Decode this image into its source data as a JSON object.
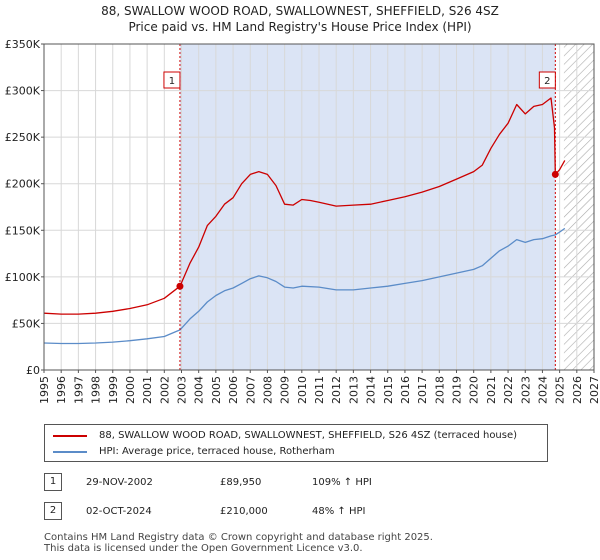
{
  "title_line1": "88, SWALLOW WOOD ROAD, SWALLOWNEST, SHEFFIELD, S26 4SZ",
  "title_line2": "Price paid vs. HM Land Registry's House Price Index (HPI)",
  "chart_data": {
    "type": "line",
    "title": "Price paid vs. HM Land Registry's House Price Index (HPI)",
    "xlabel": "",
    "ylabel": "",
    "xlim": [
      1995,
      2027
    ],
    "ylim": [
      0,
      350000
    ],
    "x_ticks": [
      1995,
      1996,
      1997,
      1998,
      1999,
      2000,
      2001,
      2002,
      2003,
      2004,
      2005,
      2006,
      2007,
      2008,
      2009,
      2010,
      2011,
      2012,
      2013,
      2014,
      2015,
      2016,
      2017,
      2018,
      2019,
      2020,
      2021,
      2022,
      2023,
      2024,
      2025,
      2026,
      2027
    ],
    "y_ticks": [
      0,
      50000,
      100000,
      150000,
      200000,
      250000,
      300000,
      350000
    ],
    "y_tick_labels": [
      "£0",
      "£50K",
      "£100K",
      "£150K",
      "£200K",
      "£250K",
      "£300K",
      "£350K"
    ],
    "shaded_period": {
      "from": 2002.91,
      "to": 2024.75,
      "color": "#dbe4f5"
    },
    "future_hatch_from": 2025.25,
    "series": [
      {
        "name": "88, SWALLOW WOOD ROAD, SWALLOWNEST, SHEFFIELD, S26 4SZ (terraced house)",
        "color": "#cc0000",
        "x": [
          1995.0,
          1996.0,
          1997.0,
          1998.0,
          1999.0,
          2000.0,
          2001.0,
          2002.0,
          2002.91,
          2003.5,
          2004.0,
          2004.5,
          2005.0,
          2005.5,
          2006.0,
          2006.5,
          2007.0,
          2007.5,
          2008.0,
          2008.5,
          2009.0,
          2009.5,
          2010.0,
          2010.5,
          2011.0,
          2012.0,
          2013.0,
          2014.0,
          2015.0,
          2016.0,
          2017.0,
          2018.0,
          2019.0,
          2020.0,
          2020.5,
          2021.0,
          2021.5,
          2022.0,
          2022.5,
          2023.0,
          2023.5,
          2024.0,
          2024.5,
          2024.7,
          2024.75,
          2025.0,
          2025.3
        ],
        "values": [
          61000,
          60000,
          60000,
          61000,
          63000,
          66000,
          70000,
          77000,
          89950,
          115000,
          132000,
          155000,
          165000,
          178000,
          185000,
          200000,
          210000,
          213000,
          210000,
          198000,
          178000,
          177000,
          183000,
          182000,
          180000,
          176000,
          177000,
          178000,
          182000,
          186000,
          191000,
          197000,
          205000,
          213000,
          220000,
          238000,
          253000,
          265000,
          285000,
          275000,
          283000,
          285000,
          292000,
          260000,
          210000,
          215000,
          225000
        ]
      },
      {
        "name": "HPI: Average price, terraced house, Rotherham",
        "color": "#5b8cc8",
        "x": [
          1995.0,
          1996.0,
          1997.0,
          1998.0,
          1999.0,
          2000.0,
          2001.0,
          2002.0,
          2002.91,
          2003.5,
          2004.0,
          2004.5,
          2005.0,
          2005.5,
          2006.0,
          2006.5,
          2007.0,
          2007.5,
          2008.0,
          2008.5,
          2009.0,
          2009.5,
          2010.0,
          2011.0,
          2012.0,
          2013.0,
          2014.0,
          2015.0,
          2016.0,
          2017.0,
          2018.0,
          2019.0,
          2020.0,
          2020.5,
          2021.0,
          2021.5,
          2022.0,
          2022.5,
          2023.0,
          2023.5,
          2024.0,
          2024.5,
          2024.75,
          2025.0,
          2025.3
        ],
        "values": [
          29000,
          28500,
          28500,
          29000,
          30000,
          31500,
          33500,
          36000,
          43000,
          55000,
          63000,
          73000,
          80000,
          85000,
          88000,
          93000,
          98000,
          101000,
          99000,
          95000,
          89000,
          88000,
          90000,
          89000,
          86000,
          86000,
          88000,
          90000,
          93000,
          96000,
          100000,
          104000,
          108000,
          112000,
          120000,
          128000,
          133000,
          140000,
          137000,
          140000,
          141000,
          144000,
          145000,
          148000,
          152000
        ]
      }
    ],
    "annotations": [
      {
        "label": "1",
        "x": 2002.91,
        "value": 89950
      },
      {
        "label": "2",
        "x": 2024.75,
        "value": 210000
      }
    ]
  },
  "legend": {
    "items": [
      {
        "label": "88, SWALLOW WOOD ROAD, SWALLOWNEST, SHEFFIELD, S26 4SZ (terraced house)",
        "color": "#cc0000"
      },
      {
        "label": "HPI: Average price, terraced house, Rotherham",
        "color": "#5b8cc8"
      }
    ]
  },
  "transactions": [
    {
      "num": "1",
      "date": "29-NOV-2002",
      "price": "£89,950",
      "hpi": "109% ↑ HPI"
    },
    {
      "num": "2",
      "date": "02-OCT-2024",
      "price": "£210,000",
      "hpi": "48% ↑ HPI"
    }
  ],
  "footer": {
    "line1": "Contains HM Land Registry data © Crown copyright and database right 2025.",
    "line2": "This data is licensed under the Open Government Licence v3.0."
  }
}
